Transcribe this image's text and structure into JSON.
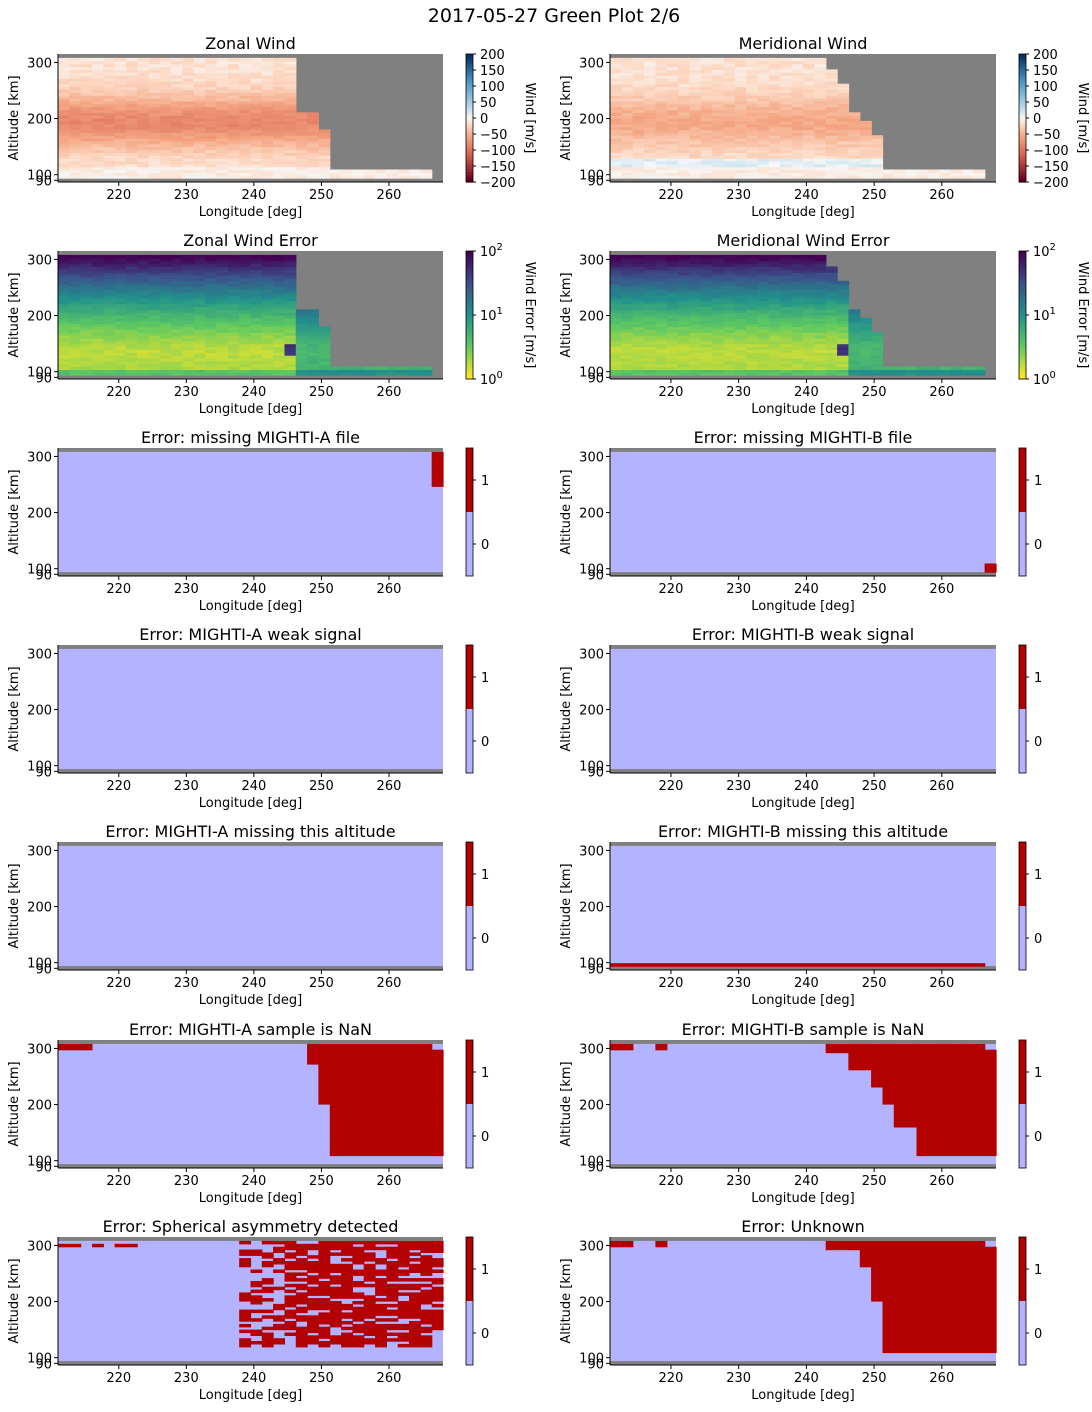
{
  "title": "2017-05-27 Green Plot 2/6",
  "colors": {
    "no_data": "#808080",
    "flag_off": "#b3b3ff",
    "flag_on": "#b30000"
  },
  "panels": [
    {
      "title": "Zonal Wind",
      "kind": "wind",
      "wind_field": "zonal",
      "colorbar_label": "Wind [m/s]",
      "colorbar_ticks": [
        "200",
        "150",
        "100",
        "50",
        "0",
        "−50",
        "−100",
        "−150",
        "−200"
      ]
    },
    {
      "title": "Meridional Wind",
      "kind": "wind",
      "wind_field": "meridional",
      "colorbar_label": "Wind [m/s]",
      "colorbar_ticks": [
        "200",
        "150",
        "100",
        "50",
        "0",
        "−50",
        "−100",
        "−150",
        "−200"
      ]
    },
    {
      "title": "Zonal Wind Error",
      "kind": "error",
      "colorbar_label": "Wind Error [m/s]",
      "colorbar_ticks": [
        "10",
        "10",
        "10"
      ],
      "colorbar_exps": [
        "2",
        "1",
        "0"
      ]
    },
    {
      "title": "Meridional Wind Error",
      "kind": "error",
      "colorbar_label": "Wind Error [m/s]",
      "colorbar_ticks": [
        "10",
        "10",
        "10"
      ],
      "colorbar_exps": [
        "2",
        "1",
        "0"
      ]
    },
    {
      "title": "Error: missing MIGHTI-A file",
      "kind": "flag",
      "flag": "fileA",
      "colorbar_ticks": [
        "1",
        "0"
      ]
    },
    {
      "title": "Error: missing MIGHTI-B file",
      "kind": "flag",
      "flag": "fileB",
      "colorbar_ticks": [
        "1",
        "0"
      ]
    },
    {
      "title": "Error: MIGHTI-A weak signal",
      "kind": "flag",
      "flag": "none",
      "colorbar_ticks": [
        "1",
        "0"
      ]
    },
    {
      "title": "Error: MIGHTI-B weak signal",
      "kind": "flag",
      "flag": "none",
      "colorbar_ticks": [
        "1",
        "0"
      ]
    },
    {
      "title": "Error: MIGHTI-A missing this altitude",
      "kind": "flag",
      "flag": "none",
      "colorbar_ticks": [
        "1",
        "0"
      ]
    },
    {
      "title": "Error: MIGHTI-B missing this altitude",
      "kind": "flag",
      "flag": "altB",
      "colorbar_ticks": [
        "1",
        "0"
      ]
    },
    {
      "title": "Error: MIGHTI-A sample is NaN",
      "kind": "flag",
      "flag": "nanA",
      "colorbar_ticks": [
        "1",
        "0"
      ]
    },
    {
      "title": "Error: MIGHTI-B sample is NaN",
      "kind": "flag",
      "flag": "nanB",
      "colorbar_ticks": [
        "1",
        "0"
      ]
    },
    {
      "title": "Error: Spherical asymmetry detected",
      "kind": "flag",
      "flag": "sph",
      "colorbar_ticks": [
        "1",
        "0"
      ]
    },
    {
      "title": "Error: Unknown",
      "kind": "flag",
      "flag": "unknown",
      "colorbar_ticks": [
        "1",
        "0"
      ]
    }
  ],
  "chart_data": {
    "type": "heatmap",
    "title": "2017-05-27 Green Plot 2/6",
    "xlabel": "Longitude [deg]",
    "ylabel": "Altitude [km]",
    "x_ticks": [
      220,
      230,
      240,
      250,
      260
    ],
    "y_ticks": [
      90,
      100,
      200,
      300
    ],
    "xlim": [
      211,
      268
    ],
    "ylim": [
      87,
      315
    ],
    "wind_colorbar_range": [
      -200,
      200
    ],
    "error_colorbar_range": [
      1,
      100
    ],
    "error_colorbar_scale": "log",
    "flag_values": [
      0,
      1
    ],
    "data_extent_altitude_km": [
      94,
      308
    ],
    "valid_wind_longitude_limits": {
      "zonal": [
        [
          310,
          244
        ],
        [
          247,
          246
        ],
        [
          210,
          247
        ],
        [
          180,
          250
        ],
        [
          110,
          252
        ],
        [
          95,
          267
        ]
      ],
      "meridional": [
        [
          310,
          242
        ],
        [
          290,
          243
        ],
        [
          275,
          244
        ],
        [
          260,
          245
        ],
        [
          245,
          246
        ],
        [
          210,
          247
        ],
        [
          195,
          248
        ],
        [
          180,
          249
        ],
        [
          170,
          250
        ],
        [
          145,
          252
        ],
        [
          110,
          252
        ],
        [
          95,
          267
        ]
      ]
    },
    "flag_regions": {
      "fileA": "altitude 245-310 km at longitude 266.5-268",
      "fileB": "altitude 94-110 km at longitude 266.5-268",
      "altB": "altitude 94-97 km at longitude 211-267",
      "nanA": "altitude 110-310 km from longitude 248-268 (edge widens to 251 below 200 km)",
      "nanB": "altitude 110-310 km from longitude 243-268 (edge moves to 256 near 110 km)",
      "sph": "scattered cells 120-310 km from longitude 238-268",
      "unknown": "altitude 110-310 km from longitude 243-268 (edge at 251 below 200 km)"
    }
  }
}
